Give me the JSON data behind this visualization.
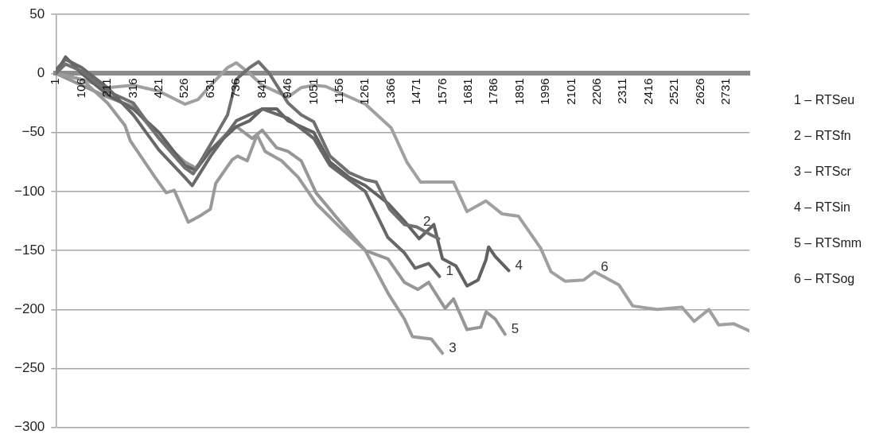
{
  "chart_data": {
    "type": "line",
    "xlim": [
      1,
      2825
    ],
    "xticks": [
      1,
      106,
      211,
      316,
      421,
      526,
      631,
      736,
      841,
      946,
      1051,
      1156,
      1261,
      1366,
      1471,
      1576,
      1681,
      1786,
      1891,
      1996,
      2101,
      2206,
      2311,
      2416,
      2521,
      2626,
      2731
    ],
    "ylim": [
      -300,
      50
    ],
    "yticks": [
      50,
      {
        "value": 0,
        "label": "0"
      },
      {
        "value": -50,
        "label": "−50"
      },
      {
        "value": -100,
        "label": "−100"
      },
      {
        "value": -150,
        "label": "−150"
      },
      {
        "value": -200,
        "label": "−200"
      },
      {
        "value": -250,
        "label": "−250"
      },
      {
        "value": -300,
        "label": "−300"
      }
    ],
    "grid": "y",
    "series": [
      {
        "color": "#686868",
        "x": [
          1,
          40,
          106,
          211,
          316,
          421,
          526,
          556,
          631,
          736,
          841,
          946,
          1051,
          1117,
          1195,
          1261,
          1353,
          1420,
          1464,
          1519,
          1563
        ],
        "values": [
          3,
          12,
          5,
          -12,
          -35,
          -65,
          -88,
          -95,
          -70,
          -40,
          -30,
          -38,
          -55,
          -78,
          -90,
          -100,
          -139,
          -152,
          -165,
          -161,
          -172
        ]
      },
      {
        "color": "#707070",
        "x": [
          1,
          40,
          106,
          211,
          316,
          421,
          526,
          560,
          631,
          700,
          736,
          790,
          826,
          870,
          946,
          1000,
          1051,
          1117,
          1195,
          1261,
          1305,
          1360,
          1420,
          1471,
          1530,
          1560
        ],
        "values": [
          0,
          8,
          2,
          -15,
          -25,
          -55,
          -80,
          -85,
          -60,
          -35,
          -5,
          5,
          10,
          0,
          -25,
          -35,
          -41,
          -70,
          -84,
          -90,
          -92,
          -115,
          -128,
          -130,
          -137,
          -140
        ]
      },
      {
        "color": "#9a9a9a",
        "x": [
          1,
          106,
          211,
          282,
          304,
          405,
          450,
          483,
          540,
          585,
          630,
          652,
          719,
          741,
          780,
          820,
          853,
          920,
          988,
          1060,
          1156,
          1261,
          1353,
          1420,
          1453,
          1530,
          1575
        ],
        "values": [
          0,
          -5,
          -25,
          -44,
          -57,
          -88,
          -101,
          -99,
          -126,
          -121,
          -115,
          -93,
          -73,
          -70,
          -74,
          -52,
          -66,
          -74,
          -88,
          -110,
          -130,
          -150,
          -186,
          -208,
          -223,
          -225,
          -237
        ]
      },
      {
        "color": "#626262",
        "x": [
          1,
          40,
          106,
          211,
          316,
          421,
          526,
          570,
          631,
          736,
          790,
          841,
          900,
          946,
          1051,
          1117,
          1195,
          1261,
          1353,
          1420,
          1480,
          1540,
          1575,
          1630,
          1675,
          1720,
          1752,
          1763,
          1790,
          1845
        ],
        "values": [
          0,
          14,
          0,
          -18,
          -30,
          -50,
          -78,
          -82,
          -65,
          -45,
          -40,
          -30,
          -30,
          -40,
          -50,
          -75,
          -88,
          -95,
          -110,
          -125,
          -140,
          -128,
          -157,
          -163,
          -180,
          -175,
          -158,
          -147,
          -155,
          -167
        ]
      },
      {
        "color": "#969696",
        "x": [
          1,
          211,
          316,
          421,
          526,
          570,
          631,
          700,
          736,
          800,
          841,
          900,
          946,
          1000,
          1060,
          1156,
          1261,
          1353,
          1420,
          1475,
          1519,
          1586,
          1620,
          1675,
          1731,
          1753,
          1790,
          1830
        ],
        "values": [
          0,
          -20,
          -28,
          -55,
          -75,
          -80,
          -65,
          -50,
          -45,
          -55,
          -48,
          -63,
          -66,
          -74,
          -101,
          -125,
          -150,
          -157,
          -177,
          -183,
          -177,
          -199,
          -191,
          -217,
          -215,
          -202,
          -208,
          -221
        ]
      },
      {
        "color": "#a0a0a0",
        "x": [
          1,
          106,
          211,
          316,
          421,
          526,
          580,
          631,
          700,
          736,
          790,
          841,
          946,
          1000,
          1051,
          1100,
          1261,
          1366,
          1430,
          1486,
          1540,
          1620,
          1675,
          1752,
          1818,
          1885,
          1975,
          2017,
          2074,
          2150,
          2194,
          2293,
          2350,
          2450,
          2550,
          2600,
          2660,
          2700,
          2760,
          2825
        ],
        "values": [
          0,
          -5,
          -12,
          -10,
          -15,
          -26,
          -22,
          -10,
          5,
          9,
          0,
          -10,
          -20,
          -12,
          -10,
          -11,
          -26,
          -46,
          -75,
          -92,
          -92,
          -92,
          -117,
          -108,
          -119,
          -121,
          -148,
          -168,
          -176,
          -175,
          -168,
          -179,
          -197,
          -200,
          -198,
          -210,
          -200,
          -213,
          -212,
          -218
        ]
      }
    ],
    "annotations": [
      {
        "text": "1",
        "x": 1563,
        "y": -172
      },
      {
        "text": "2",
        "x": 1471,
        "y": -130
      },
      {
        "text": "3",
        "x": 1575,
        "y": -237
      },
      {
        "text": "4",
        "x": 1845,
        "y": -167
      },
      {
        "text": "5",
        "x": 1830,
        "y": -221
      },
      {
        "text": "6",
        "x": 2194,
        "y": -168
      },
      "1 – RTSeu",
      "2 – RTSfn",
      "3 – RTScr",
      "4 – RTSin",
      "5 – RTSmm",
      "6 – RTSog"
    ]
  }
}
